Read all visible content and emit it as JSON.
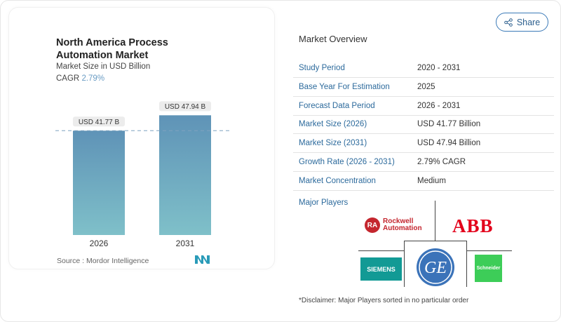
{
  "chart_data": {
    "type": "bar",
    "title": "North America Process Automation Market",
    "subtitle": "Market Size in USD Billion",
    "cagr_label": "CAGR",
    "cagr_value": "2.79%",
    "categories": [
      "2026",
      "2031"
    ],
    "values": [
      41.77,
      47.94
    ],
    "data_labels": [
      "USD 41.77 B",
      "USD 47.94 B"
    ],
    "bar_color_top": "#5f93b7",
    "bar_color_bottom": "#7fc0c9",
    "source": "Source :  Mordor Intelligence"
  },
  "share_label": "Share",
  "overview": {
    "title": "Market Overview",
    "rows": [
      {
        "k": "Study Period",
        "v": "2020 - 2031"
      },
      {
        "k": "Base Year For Estimation",
        "v": "2025"
      },
      {
        "k": "Forecast Data Period",
        "v": "2026 - 2031"
      },
      {
        "k": "Market Size (2026)",
        "v": "USD 41.77 Billion"
      },
      {
        "k": "Market Size (2031)",
        "v": "USD 47.94 Billion"
      },
      {
        "k": "Growth Rate (2026 - 2031)",
        "v": "2.79% CAGR"
      },
      {
        "k": "Market Concentration",
        "v": "Medium"
      }
    ]
  },
  "major_players": {
    "title": "Major Players",
    "logos": [
      "Rockwell Automation",
      "ABB",
      "SIEMENS",
      "GE",
      "Schneider Electric"
    ],
    "disclaimer": "*Disclaimer: Major Players sorted in no particular order"
  }
}
